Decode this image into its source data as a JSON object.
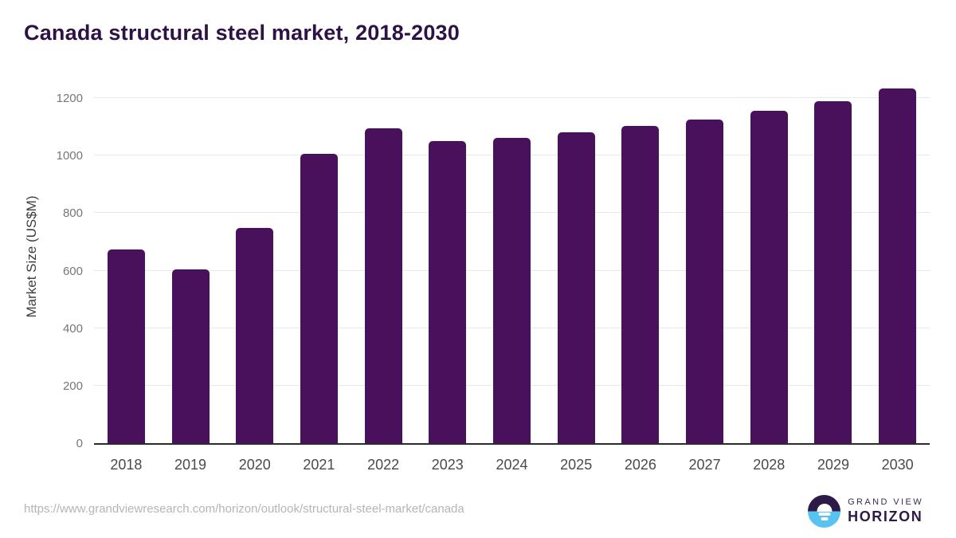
{
  "title": "Canada structural steel market, 2018-2030",
  "source_url": "https://www.grandviewresearch.com/horizon/outlook/structural-steel-market/canada",
  "logo": {
    "line1": "GRAND VIEW",
    "line2": "HORIZON",
    "icon": "horizon-sun-circle-icon"
  },
  "colors": {
    "bar": "#49115c",
    "title_text": "#2d1244",
    "gridline": "#e8e8e8",
    "axis_line": "#2b2b2b",
    "x_tick_text": "#4a4a4a",
    "y_tick_text": "#767676",
    "url_text": "#b5b5b5",
    "logo_purple": "#2e1a47",
    "logo_blue": "#58c3f0"
  },
  "chart_data": {
    "type": "bar",
    "title": "Canada structural steel market, 2018-2030",
    "xlabel": "",
    "ylabel": "Market Size (US$M)",
    "categories": [
      "2018",
      "2019",
      "2020",
      "2021",
      "2022",
      "2023",
      "2024",
      "2025",
      "2026",
      "2027",
      "2028",
      "2029",
      "2030"
    ],
    "values": [
      673,
      604,
      749,
      1007,
      1096,
      1050,
      1062,
      1080,
      1103,
      1126,
      1156,
      1189,
      1234
    ],
    "ylim": [
      0,
      1250
    ],
    "yticks": [
      0,
      200,
      400,
      600,
      800,
      1000,
      1200
    ],
    "grid": true,
    "legend_position": "none",
    "bar_color": "#49115c"
  }
}
